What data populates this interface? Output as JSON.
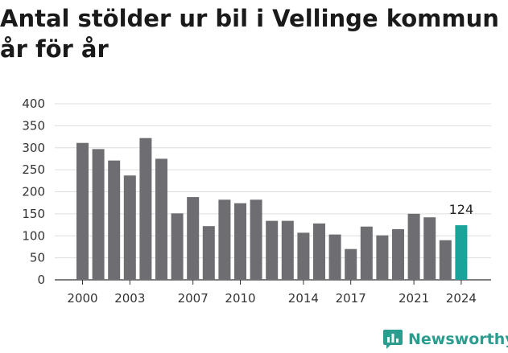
{
  "header": {
    "title": "Antal stölder ur bil i Vellinge kommun år för år"
  },
  "brand": {
    "name": "Newsworthy",
    "icon": "bar-chart-chat-icon",
    "color": "#2a9d8f"
  },
  "colors": {
    "bar": "#6e6d72",
    "highlight": "#1aa39a",
    "grid": "#dddddd"
  },
  "chart_data": {
    "type": "bar",
    "title": "Antal stölder ur bil i Vellinge kommun år för år",
    "xlabel": "",
    "ylabel": "",
    "ylim": [
      0,
      400
    ],
    "yticks": [
      0,
      50,
      100,
      150,
      200,
      250,
      300,
      350,
      400
    ],
    "grid": true,
    "legend": "none",
    "categories": [
      "2000",
      "2001",
      "2002",
      "2003",
      "2004",
      "2005",
      "2006",
      "2007",
      "2008",
      "2009",
      "2010",
      "2011",
      "2012",
      "2013",
      "2014",
      "2015",
      "2016",
      "2017",
      "2018",
      "2019",
      "2020",
      "2021",
      "2022",
      "2023",
      "2024"
    ],
    "values": [
      311,
      297,
      271,
      237,
      322,
      275,
      151,
      188,
      122,
      182,
      174,
      182,
      134,
      134,
      107,
      128,
      103,
      70,
      121,
      101,
      115,
      150,
      142,
      90,
      124
    ],
    "xtick_labels": [
      "2000",
      "2003",
      "2007",
      "2010",
      "2014",
      "2017",
      "2021",
      "2024"
    ],
    "highlight_index": 24,
    "data_labels": [
      {
        "index": 24,
        "text": "124"
      }
    ]
  }
}
